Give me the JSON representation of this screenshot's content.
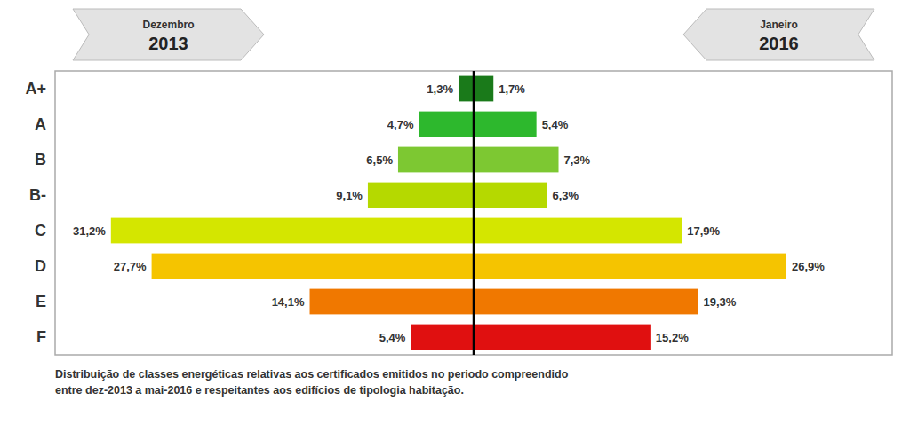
{
  "chart_data": {
    "type": "bar",
    "orientation": "horizontal",
    "categories": [
      "A+",
      "A",
      "B",
      "B-",
      "C",
      "D",
      "E",
      "F"
    ],
    "colors": [
      "#1a7a1a",
      "#2db82d",
      "#7dc832",
      "#b5d900",
      "#d4e600",
      "#f5c400",
      "#f07800",
      "#e01010"
    ],
    "series": [
      {
        "values": [
          1.3,
          4.7,
          6.5,
          9.1,
          31.2,
          27.7,
          14.1,
          5.4
        ],
        "value_labels": [
          "1,3%",
          "4,7%",
          "6,5%",
          "9,1%",
          "31,2%",
          "27,7%",
          "14,1%",
          "5,4%"
        ]
      },
      {
        "values": [
          1.7,
          5.4,
          7.3,
          6.3,
          17.9,
          26.9,
          19.3,
          15.2
        ],
        "value_labels": [
          "1,7%",
          "5,4%",
          "7,3%",
          "6,3%",
          "17,9%",
          "26,9%",
          "19,3%",
          "15,2%"
        ]
      }
    ],
    "xlim": [
      -36,
      36
    ],
    "tick_labels": false,
    "grid": false,
    "data_labels": true,
    "annotations": [
      "Dezembro",
      "2013",
      "Janeiro",
      "2016"
    ],
    "caption": [
      "Distribuição de classes energéticas relativas aos certificados emitidos no periodo compreendido",
      "entre dez-2013 a mai-2016 e respeitantes aos edifícios de tipologia habitação."
    ]
  }
}
